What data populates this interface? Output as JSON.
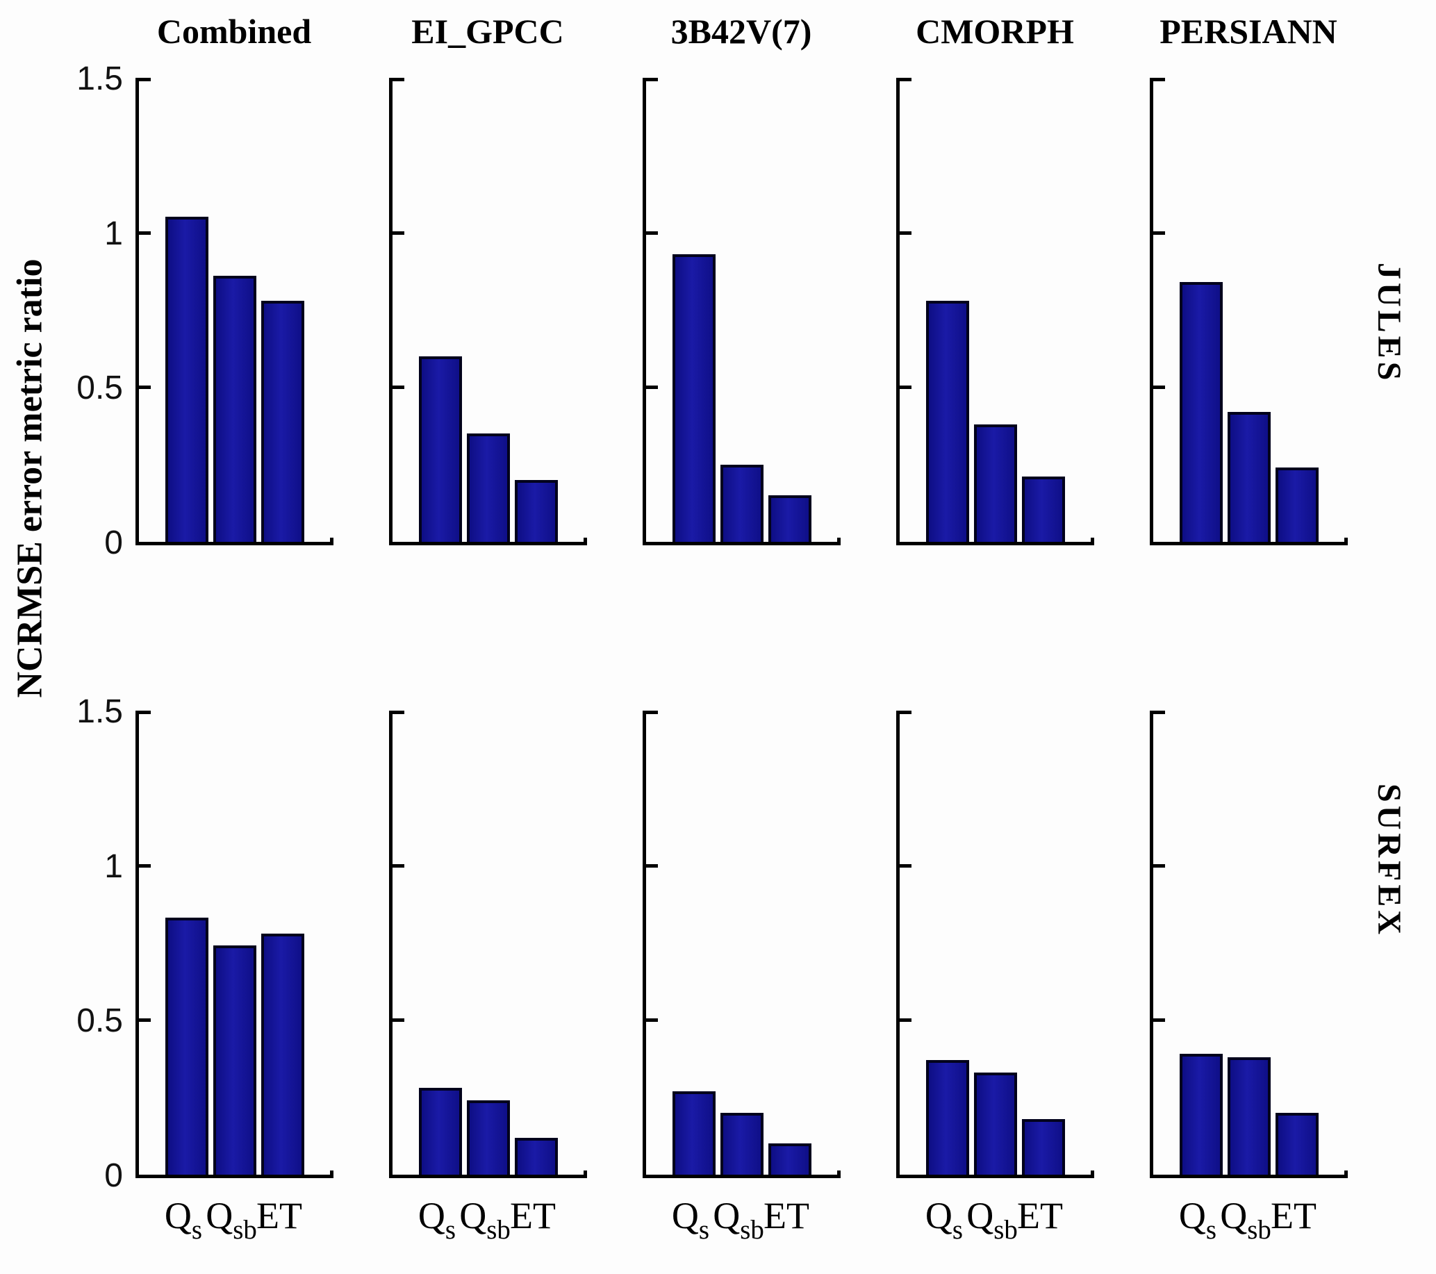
{
  "figure": {
    "ylabel": "NCRMSE error metric ratio",
    "row_labels": [
      "JULES",
      "SURFEX"
    ],
    "col_titles": [
      "Combined",
      "EI_GPCC",
      "3B42V(7)",
      "CMORPH",
      "PERSIANN"
    ],
    "y_tick_labels": [
      "1.5",
      "1",
      "0.5",
      "0"
    ],
    "x_tick_labels": [
      {
        "base": "Q",
        "sub": "s"
      },
      {
        "base": "Q",
        "sub": "sb"
      },
      {
        "base": "ET",
        "sub": ""
      }
    ],
    "colors": {
      "bar_fill": "#15159b",
      "bar_edge": "#02021c",
      "axis": "#000000",
      "background": "#fdfdfd",
      "text": "#000000"
    }
  },
  "chart_data": {
    "type": "bar",
    "layout": "2 rows x 5 columns of small-multiple bar charts",
    "title": "",
    "xlabel": "",
    "ylabel": "NCRMSE error metric ratio",
    "categories": [
      "Qs",
      "Qsb",
      "ET"
    ],
    "ylim": [
      0,
      1.5
    ],
    "yticks": [
      0,
      0.5,
      1,
      1.5
    ],
    "grid": false,
    "legend": false,
    "rows": [
      {
        "label": "JULES",
        "cols": [
          {
            "title": "Combined",
            "values": [
              1.05,
              0.86,
              0.78
            ]
          },
          {
            "title": "EI_GPCC",
            "values": [
              0.6,
              0.35,
              0.2
            ]
          },
          {
            "title": "3B42V(7)",
            "values": [
              0.93,
              0.25,
              0.15
            ]
          },
          {
            "title": "CMORPH",
            "values": [
              0.78,
              0.38,
              0.21
            ]
          },
          {
            "title": "PERSIANN",
            "values": [
              0.84,
              0.42,
              0.24
            ]
          }
        ]
      },
      {
        "label": "SURFEX",
        "cols": [
          {
            "title": "Combined",
            "values": [
              0.83,
              0.74,
              0.78
            ]
          },
          {
            "title": "EI_GPCC",
            "values": [
              0.28,
              0.24,
              0.12
            ]
          },
          {
            "title": "3B42V(7)",
            "values": [
              0.27,
              0.2,
              0.1
            ]
          },
          {
            "title": "CMORPH",
            "values": [
              0.37,
              0.33,
              0.18
            ]
          },
          {
            "title": "PERSIANN",
            "values": [
              0.39,
              0.38,
              0.2
            ]
          }
        ]
      }
    ]
  }
}
